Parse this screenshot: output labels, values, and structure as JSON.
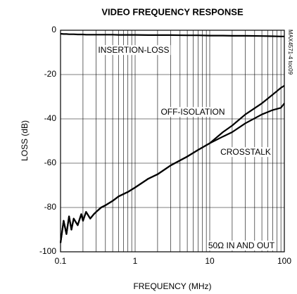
{
  "chart_data": {
    "type": "line",
    "title": "VIDEO FREQUENCY RESPONSE",
    "x_label": "FREQUENCY (MHz)",
    "y_label": "LOSS (dB)",
    "side_label": "MAX4571-4 toc09",
    "x_log": true,
    "grid": true,
    "minor_grid": true,
    "xlim": [
      0.1,
      100
    ],
    "ylim": [
      -100,
      0
    ],
    "xticks": [
      0.1,
      1,
      10,
      100
    ],
    "yticks": [
      0,
      -20,
      -40,
      -60,
      -80,
      -100
    ],
    "x": [
      0.1,
      0.11,
      0.12,
      0.13,
      0.14,
      0.15,
      0.17,
      0.19,
      0.2,
      0.22,
      0.25,
      0.28,
      0.3,
      0.35,
      0.4,
      0.5,
      0.6,
      0.8,
      1,
      1.5,
      2,
      3,
      5,
      7,
      10,
      15,
      20,
      30,
      50,
      70,
      90,
      100
    ],
    "series": [
      {
        "name": "INSERTION-LOSS",
        "color": "#000000",
        "values": [
          -1.6,
          -1.7,
          -1.7,
          -1.8,
          -1.8,
          -1.8,
          -1.9,
          -1.9,
          -1.9,
          -2,
          -2,
          -2,
          -2,
          -2,
          -2,
          -2,
          -2.1,
          -2.1,
          -2.1,
          -2.2,
          -2.2,
          -2.2,
          -2.3,
          -2.3,
          -2.4,
          -2.4,
          -2.5,
          -2.5,
          -2.6,
          -2.7,
          -2.8,
          -2.8
        ]
      },
      {
        "name": "OFF-ISOLATION",
        "color": "#000000",
        "values": [
          -96,
          -86,
          -92,
          -84,
          -90,
          -85,
          -88,
          -83,
          -86,
          -82,
          -85,
          -83,
          -82,
          -80,
          -79,
          -77,
          -75,
          -73,
          -71,
          -67,
          -65,
          -61,
          -57,
          -54,
          -51,
          -46,
          -43,
          -38,
          -33,
          -29,
          -26,
          -25
        ]
      },
      {
        "name": "CROSSTALK",
        "color": "#000000",
        "values": [
          -96,
          -86,
          -92,
          -84,
          -90,
          -85,
          -88,
          -83,
          -86,
          -82,
          -85,
          -83,
          -82,
          -80,
          -79,
          -77,
          -75,
          -73,
          -71,
          -67,
          -65,
          -61,
          -57,
          -54,
          -51,
          -48,
          -46,
          -42,
          -38,
          -36,
          -35,
          -33
        ]
      }
    ],
    "annotations": [
      "INSERTION-LOSS",
      "OFF-ISOLATION",
      "CROSSTALK",
      "50Ω IN AND OUT"
    ]
  }
}
